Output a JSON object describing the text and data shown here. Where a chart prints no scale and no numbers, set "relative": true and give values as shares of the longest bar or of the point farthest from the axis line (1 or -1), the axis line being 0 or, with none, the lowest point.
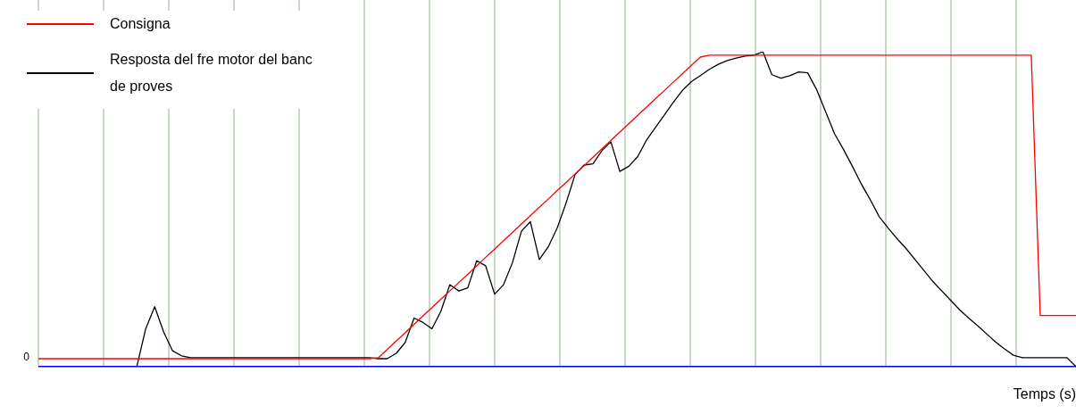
{
  "chart_data": {
    "type": "line",
    "relative": true,
    "xlabel": "Temps (s)",
    "legend": "top left",
    "grid": "x",
    "marker": "none",
    "line_style": "solid",
    "categories": [
      null,
      null,
      null,
      null,
      null,
      null,
      null,
      null,
      null,
      null,
      null,
      null,
      null,
      null,
      null,
      null,
      null,
      null,
      null,
      null,
      null,
      null,
      null,
      null,
      null,
      null,
      null,
      null,
      null,
      null,
      null,
      null,
      null,
      null,
      null,
      null,
      null,
      null,
      null,
      null,
      null,
      null,
      null,
      null,
      null,
      null,
      null,
      null,
      null,
      null,
      null,
      null,
      null,
      null,
      null,
      null,
      null,
      null,
      null,
      null,
      null,
      null,
      null,
      null,
      null,
      null,
      null,
      null,
      null,
      null,
      null,
      null,
      null,
      null,
      null,
      null,
      null,
      null,
      null,
      null,
      null,
      null,
      null,
      null,
      null,
      null,
      null,
      null,
      null,
      null,
      null,
      null,
      null,
      null,
      null,
      null,
      null,
      null,
      null,
      null,
      null,
      null,
      null,
      null,
      null,
      null,
      null,
      null,
      null,
      null,
      null,
      null,
      null,
      null,
      null,
      null,
      null
    ],
    "series": [
      {
        "name": "Consigna",
        "color": "#ff0000",
        "values": [
          0.025,
          0.025,
          0.025,
          0.025,
          0.025,
          0.025,
          0.025,
          0.025,
          0.025,
          0.025,
          0.025,
          0.025,
          0.025,
          0.025,
          0.025,
          0.025,
          0.025,
          0.025,
          0.025,
          0.025,
          0.025,
          0.025,
          0.025,
          0.025,
          0.025,
          0.025,
          0.025,
          0.025,
          0.025,
          0.025,
          0.025,
          0.025,
          0.025,
          0.025,
          0.025,
          0.025,
          0.025,
          0.025,
          0.028,
          0.054,
          0.081,
          0.107,
          0.134,
          0.161,
          0.187,
          0.214,
          0.24,
          0.267,
          0.293,
          0.32,
          0.347,
          0.373,
          0.4,
          0.426,
          0.453,
          0.479,
          0.506,
          0.532,
          0.559,
          0.585,
          0.612,
          0.638,
          0.665,
          0.692,
          0.718,
          0.745,
          0.771,
          0.798,
          0.824,
          0.851,
          0.877,
          0.904,
          0.93,
          0.957,
          0.983,
          0.989,
          0.989,
          0.989,
          0.989,
          0.989,
          0.989,
          0.989,
          0.989,
          0.989,
          0.989,
          0.989,
          0.989,
          0.989,
          0.989,
          0.989,
          0.989,
          0.989,
          0.989,
          0.989,
          0.989,
          0.989,
          0.989,
          0.989,
          0.989,
          0.989,
          0.989,
          0.989,
          0.989,
          0.989,
          0.989,
          0.989,
          0.989,
          0.989,
          0.989,
          0.989,
          0.989,
          0.989,
          0.162,
          0.162,
          0.162,
          0.162,
          0.162
        ]
      },
      {
        "name": "Resposta del fre motor del banc de proves",
        "color": "#000000",
        "values": [
          null,
          null,
          null,
          null,
          null,
          null,
          null,
          null,
          null,
          null,
          null,
          0,
          0.12,
          0.19,
          0.11,
          0.05,
          0.034,
          0.028,
          0.028,
          0.028,
          0.028,
          0.028,
          0.028,
          0.028,
          0.028,
          0.028,
          0.028,
          0.028,
          0.028,
          0.028,
          0.028,
          0.028,
          0.028,
          0.028,
          0.028,
          0.028,
          0.028,
          0.028,
          0.025,
          0.025,
          0.042,
          0.076,
          0.154,
          0.14,
          0.12,
          0.176,
          0.26,
          0.24,
          0.25,
          0.336,
          0.32,
          0.23,
          0.26,
          0.33,
          0.43,
          0.46,
          0.34,
          0.38,
          0.44,
          0.52,
          0.61,
          0.64,
          0.644,
          0.686,
          0.714,
          0.62,
          0.636,
          0.667,
          0.72,
          0.76,
          0.8,
          0.84,
          0.877,
          0.905,
          0.924,
          0.944,
          0.96,
          0.972,
          0.98,
          0.986,
          0.989,
          1,
          0.927,
          0.916,
          0.924,
          0.936,
          0.933,
          0.88,
          0.81,
          0.74,
          0.69,
          0.636,
          0.58,
          0.53,
          0.476,
          0.44,
          0.406,
          0.375,
          0.34,
          0.305,
          0.27,
          0.24,
          0.21,
          0.18,
          0.154,
          0.13,
          0.104,
          0.078,
          0.056,
          0.036,
          0.028,
          0.028,
          0.028,
          0.028,
          0.028,
          0.028,
          0
        ]
      }
    ],
    "annotations": [
      "0"
    ]
  }
}
